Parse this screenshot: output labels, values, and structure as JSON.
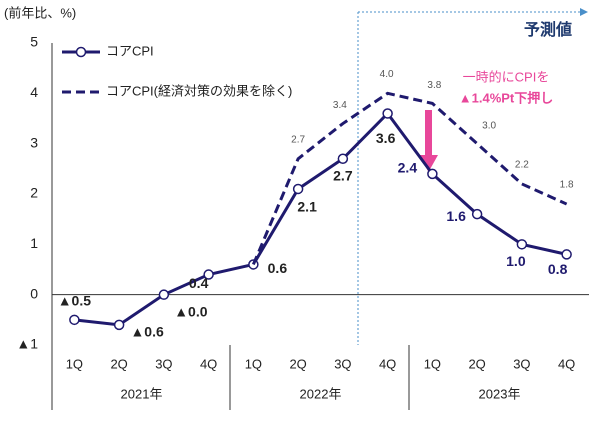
{
  "chart_data": {
    "type": "line",
    "y_label": "(前年比、%)",
    "categories": [
      "1Q",
      "2Q",
      "3Q",
      "4Q",
      "1Q",
      "2Q",
      "3Q",
      "4Q",
      "1Q",
      "2Q",
      "3Q",
      "4Q"
    ],
    "year_labels": [
      "2021年",
      "2022年",
      "2023年"
    ],
    "series": [
      {
        "name": "コアCPI",
        "color": "#1f1a6e",
        "dash": false,
        "markers": true,
        "values": [
          -0.5,
          -0.6,
          0,
          0.4,
          0.6,
          2.1,
          2.7,
          3.6,
          2.4,
          1.6,
          1.0,
          0.8
        ],
        "value_labels": [
          "▲0.5",
          "▲0.6",
          "▲0.0",
          "0.4",
          "0.6",
          "2.1",
          "2.7",
          "3.6",
          "2.4",
          "1.6",
          "1.0",
          "0.8"
        ]
      },
      {
        "name": "コアCPI(経済対策の効果を除く)",
        "color": "#1f1a6e",
        "dash": true,
        "markers": false,
        "values": [
          null,
          null,
          null,
          null,
          0.6,
          2.7,
          3.4,
          4.0,
          3.8,
          3.0,
          2.2,
          1.8
        ],
        "value_labels": [
          null,
          null,
          null,
          null,
          null,
          "2.7",
          "3.4",
          "4.0",
          "3.8",
          "3.0",
          "2.2",
          "1.8"
        ]
      }
    ],
    "ylim": [
      -1,
      5
    ],
    "yticks": [
      {
        "value": -1,
        "label": "▲1"
      },
      0,
      1,
      2,
      3,
      4,
      5
    ],
    "grid": false,
    "annotations": [
      "予測値",
      "一時的にCPIを",
      "▲1.4%Pt下押し"
    ]
  }
}
